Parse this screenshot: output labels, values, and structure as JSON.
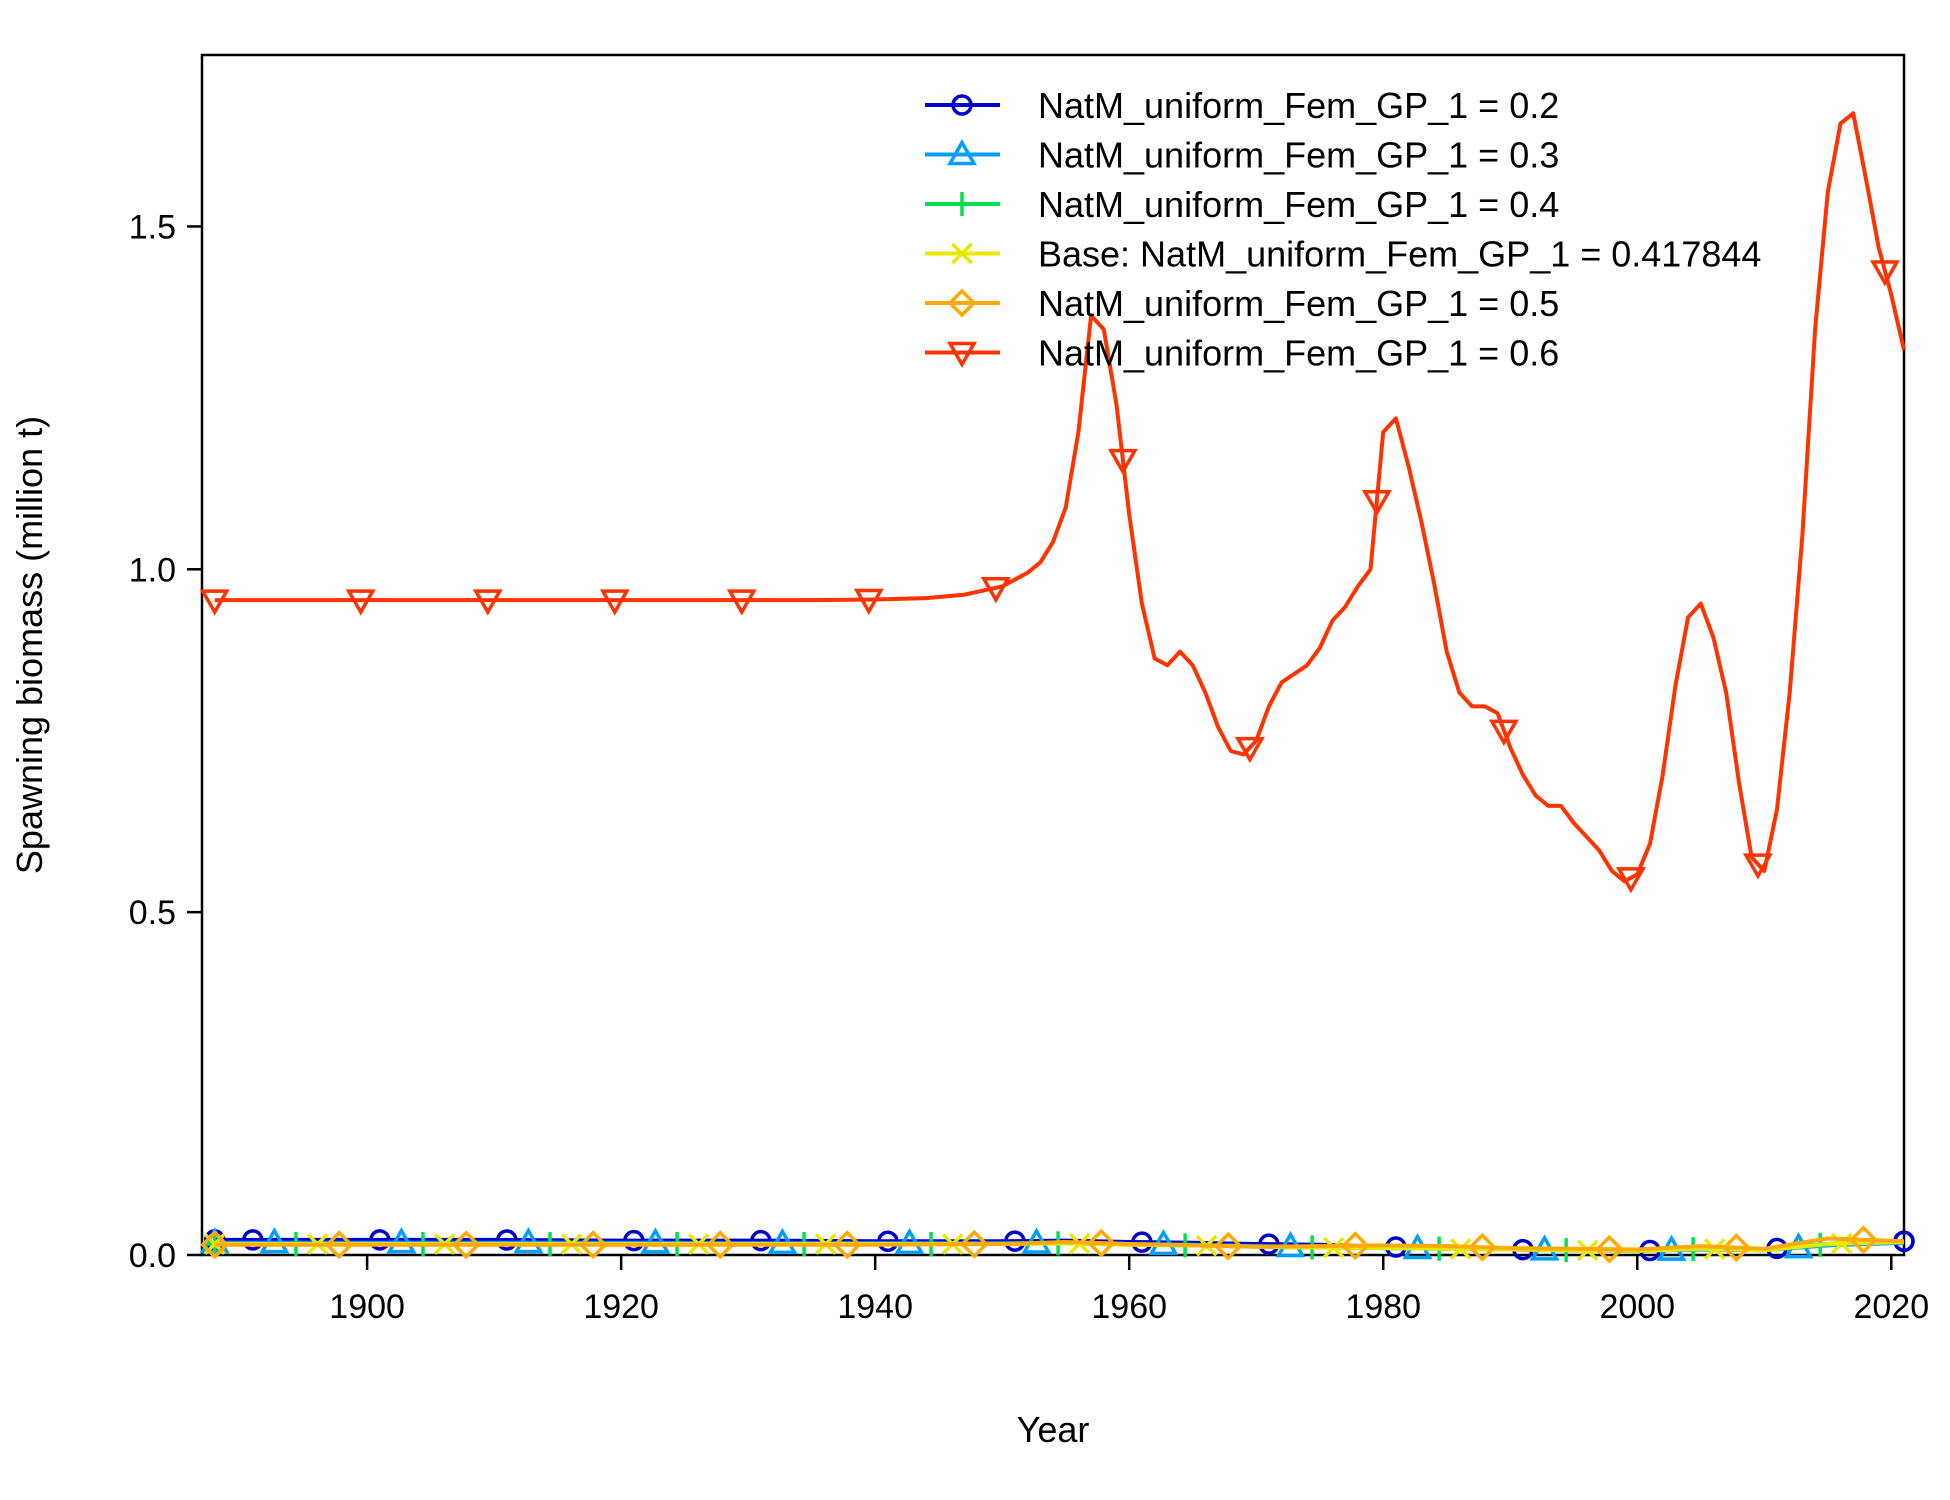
{
  "chart_data": {
    "type": "line",
    "xlabel": "Year",
    "ylabel": "Spawning biomass (million t)",
    "xlim": [
      1887,
      2021
    ],
    "ylim": [
      0,
      1.75
    ],
    "x_ticks": [
      "1900",
      "1920",
      "1940",
      "1960",
      "1980",
      "2000",
      "2020"
    ],
    "y_ticks": [
      "0.0",
      "0.5",
      "1.0",
      "1.5"
    ],
    "grid": false,
    "legend_position": "top-right",
    "series": [
      {
        "name": "NatM_uniform_Fem_GP_1 = 0.2",
        "color": "#0000cc",
        "marker": "circle",
        "points": [
          [
            1888,
            0.022
          ],
          [
            1900,
            0.022
          ],
          [
            1910,
            0.022
          ],
          [
            1920,
            0.021
          ],
          [
            1930,
            0.021
          ],
          [
            1940,
            0.02
          ],
          [
            1950,
            0.02
          ],
          [
            1955,
            0.021
          ],
          [
            1960,
            0.019
          ],
          [
            1965,
            0.018
          ],
          [
            1970,
            0.016
          ],
          [
            1975,
            0.015
          ],
          [
            1980,
            0.012
          ],
          [
            1985,
            0.01
          ],
          [
            1990,
            0.008
          ],
          [
            1995,
            0.007
          ],
          [
            2000,
            0.006
          ],
          [
            2005,
            0.009
          ],
          [
            2010,
            0.008
          ],
          [
            2015,
            0.016
          ],
          [
            2021,
            0.02
          ]
        ]
      },
      {
        "name": "NatM_uniform_Fem_GP_1 = 0.3",
        "color": "#009fff",
        "marker": "triangle-up",
        "points": [
          [
            1888,
            0.018
          ],
          [
            1900,
            0.018
          ],
          [
            1910,
            0.018
          ],
          [
            1920,
            0.018
          ],
          [
            1930,
            0.017
          ],
          [
            1940,
            0.017
          ],
          [
            1950,
            0.017
          ],
          [
            1955,
            0.018
          ],
          [
            1960,
            0.016
          ],
          [
            1965,
            0.015
          ],
          [
            1970,
            0.013
          ],
          [
            1975,
            0.012
          ],
          [
            1980,
            0.01
          ],
          [
            1985,
            0.009
          ],
          [
            1990,
            0.008
          ],
          [
            1995,
            0.007
          ],
          [
            2000,
            0.006
          ],
          [
            2005,
            0.008
          ],
          [
            2010,
            0.007
          ],
          [
            2015,
            0.014
          ],
          [
            2021,
            0.018
          ]
        ]
      },
      {
        "name": "NatM_uniform_Fem_GP_1 = 0.4",
        "color": "#00e050",
        "marker": "plus",
        "points": [
          [
            1888,
            0.016
          ],
          [
            1900,
            0.016
          ],
          [
            1910,
            0.016
          ],
          [
            1920,
            0.016
          ],
          [
            1930,
            0.016
          ],
          [
            1940,
            0.016
          ],
          [
            1950,
            0.016
          ],
          [
            1955,
            0.017
          ],
          [
            1960,
            0.015
          ],
          [
            1965,
            0.014
          ],
          [
            1970,
            0.012
          ],
          [
            1975,
            0.011
          ],
          [
            1980,
            0.01
          ],
          [
            1985,
            0.009
          ],
          [
            1990,
            0.008
          ],
          [
            1995,
            0.007
          ],
          [
            2000,
            0.006
          ],
          [
            2005,
            0.009
          ],
          [
            2010,
            0.007
          ],
          [
            2015,
            0.016
          ],
          [
            2021,
            0.019
          ]
        ]
      },
      {
        "name": "Base: NatM_uniform_Fem_GP_1 = 0.417844",
        "color": "#e8e800",
        "marker": "x",
        "points": [
          [
            1888,
            0.016
          ],
          [
            1900,
            0.016
          ],
          [
            1910,
            0.016
          ],
          [
            1920,
            0.016
          ],
          [
            1930,
            0.016
          ],
          [
            1940,
            0.016
          ],
          [
            1950,
            0.016
          ],
          [
            1955,
            0.017
          ],
          [
            1960,
            0.015
          ],
          [
            1965,
            0.014
          ],
          [
            1970,
            0.012
          ],
          [
            1975,
            0.011
          ],
          [
            1980,
            0.01
          ],
          [
            1985,
            0.009
          ],
          [
            1990,
            0.008
          ],
          [
            1995,
            0.007
          ],
          [
            2000,
            0.006
          ],
          [
            2005,
            0.009
          ],
          [
            2010,
            0.007
          ],
          [
            2015,
            0.016
          ],
          [
            2021,
            0.019
          ]
        ]
      },
      {
        "name": "NatM_uniform_Fem_GP_1 = 0.5",
        "color": "#ffaa00",
        "marker": "diamond",
        "points": [
          [
            1888,
            0.015
          ],
          [
            1900,
            0.015
          ],
          [
            1910,
            0.015
          ],
          [
            1920,
            0.015
          ],
          [
            1930,
            0.015
          ],
          [
            1940,
            0.015
          ],
          [
            1950,
            0.016
          ],
          [
            1955,
            0.019
          ],
          [
            1960,
            0.016
          ],
          [
            1965,
            0.014
          ],
          [
            1970,
            0.012
          ],
          [
            1975,
            0.013
          ],
          [
            1980,
            0.014
          ],
          [
            1985,
            0.013
          ],
          [
            1990,
            0.01
          ],
          [
            1995,
            0.009
          ],
          [
            2000,
            0.008
          ],
          [
            2005,
            0.013
          ],
          [
            2010,
            0.009
          ],
          [
            2015,
            0.024
          ],
          [
            2021,
            0.02
          ]
        ]
      },
      {
        "name": "NatM_uniform_Fem_GP_1 = 0.6",
        "color": "#ff3300",
        "marker": "triangle-down",
        "points": [
          [
            1888,
            0.955
          ],
          [
            1895,
            0.955
          ],
          [
            1905,
            0.955
          ],
          [
            1915,
            0.955
          ],
          [
            1925,
            0.955
          ],
          [
            1935,
            0.955
          ],
          [
            1940,
            0.956
          ],
          [
            1944,
            0.958
          ],
          [
            1947,
            0.963
          ],
          [
            1950,
            0.975
          ],
          [
            1952,
            0.995
          ],
          [
            1953,
            1.01
          ],
          [
            1954,
            1.04
          ],
          [
            1955,
            1.09
          ],
          [
            1956,
            1.2
          ],
          [
            1957,
            1.37
          ],
          [
            1958,
            1.35
          ],
          [
            1959,
            1.24
          ],
          [
            1960,
            1.08
          ],
          [
            1961,
            0.95
          ],
          [
            1962,
            0.87
          ],
          [
            1963,
            0.86
          ],
          [
            1964,
            0.88
          ],
          [
            1965,
            0.86
          ],
          [
            1966,
            0.82
          ],
          [
            1967,
            0.77
          ],
          [
            1968,
            0.735
          ],
          [
            1969,
            0.73
          ],
          [
            1970,
            0.75
          ],
          [
            1971,
            0.8
          ],
          [
            1972,
            0.835
          ],
          [
            1974,
            0.86
          ],
          [
            1975,
            0.885
          ],
          [
            1976,
            0.925
          ],
          [
            1977,
            0.945
          ],
          [
            1978,
            0.975
          ],
          [
            1979,
            1.0
          ],
          [
            1980,
            1.2
          ],
          [
            1981,
            1.22
          ],
          [
            1982,
            1.15
          ],
          [
            1983,
            1.07
          ],
          [
            1984,
            0.98
          ],
          [
            1985,
            0.88
          ],
          [
            1986,
            0.82
          ],
          [
            1987,
            0.8
          ],
          [
            1988,
            0.8
          ],
          [
            1989,
            0.79
          ],
          [
            1990,
            0.74
          ],
          [
            1991,
            0.7
          ],
          [
            1992,
            0.67
          ],
          [
            1993,
            0.655
          ],
          [
            1994,
            0.655
          ],
          [
            1995,
            0.63
          ],
          [
            1996,
            0.61
          ],
          [
            1997,
            0.59
          ],
          [
            1998,
            0.56
          ],
          [
            1999,
            0.545
          ],
          [
            2000,
            0.555
          ],
          [
            2001,
            0.6
          ],
          [
            2002,
            0.7
          ],
          [
            2003,
            0.83
          ],
          [
            2004,
            0.93
          ],
          [
            2005,
            0.95
          ],
          [
            2006,
            0.9
          ],
          [
            2007,
            0.82
          ],
          [
            2008,
            0.69
          ],
          [
            2009,
            0.58
          ],
          [
            2010,
            0.56
          ],
          [
            2011,
            0.65
          ],
          [
            2012,
            0.82
          ],
          [
            2013,
            1.05
          ],
          [
            2014,
            1.35
          ],
          [
            2015,
            1.55
          ],
          [
            2016,
            1.65
          ],
          [
            2017,
            1.665
          ],
          [
            2018,
            1.57
          ],
          [
            2019,
            1.47
          ],
          [
            2020,
            1.4
          ],
          [
            2021,
            1.32
          ]
        ]
      }
    ]
  }
}
